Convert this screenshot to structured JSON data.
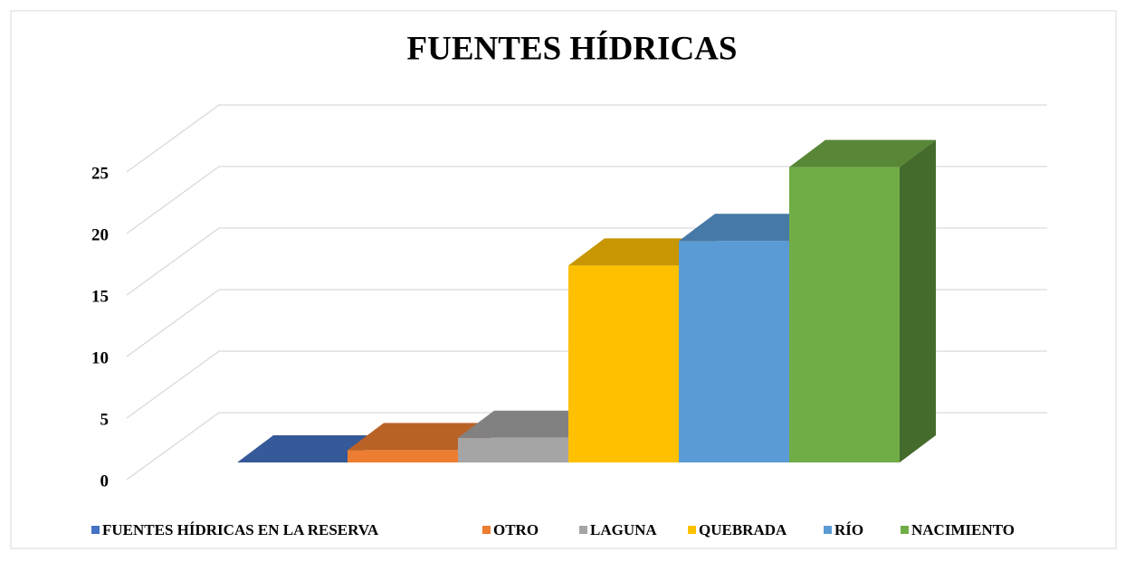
{
  "chart_data": {
    "type": "bar3d",
    "title": "FUENTES HÍDRICAS",
    "series": [
      {
        "name": "FUENTES HÍDRICAS EN LA RESERVA",
        "color": "#4472c4",
        "values": [
          0
        ]
      },
      {
        "name": "OTRO",
        "color": "#ed7d31",
        "values": [
          1
        ]
      },
      {
        "name": "LAGUNA",
        "color": "#a5a5a5",
        "values": [
          2
        ]
      },
      {
        "name": "QUEBRADA",
        "color": "#ffc000",
        "values": [
          16
        ]
      },
      {
        "name": "RÍO",
        "color": "#5b9bd5",
        "values": [
          18
        ]
      },
      {
        "name": "NACIMIENTO",
        "color": "#70ad47",
        "values": [
          24
        ]
      }
    ],
    "ylim": [
      0,
      25
    ],
    "yticks": [
      0,
      5,
      10,
      15,
      20,
      25
    ],
    "grid": true,
    "legend": "bottom"
  }
}
